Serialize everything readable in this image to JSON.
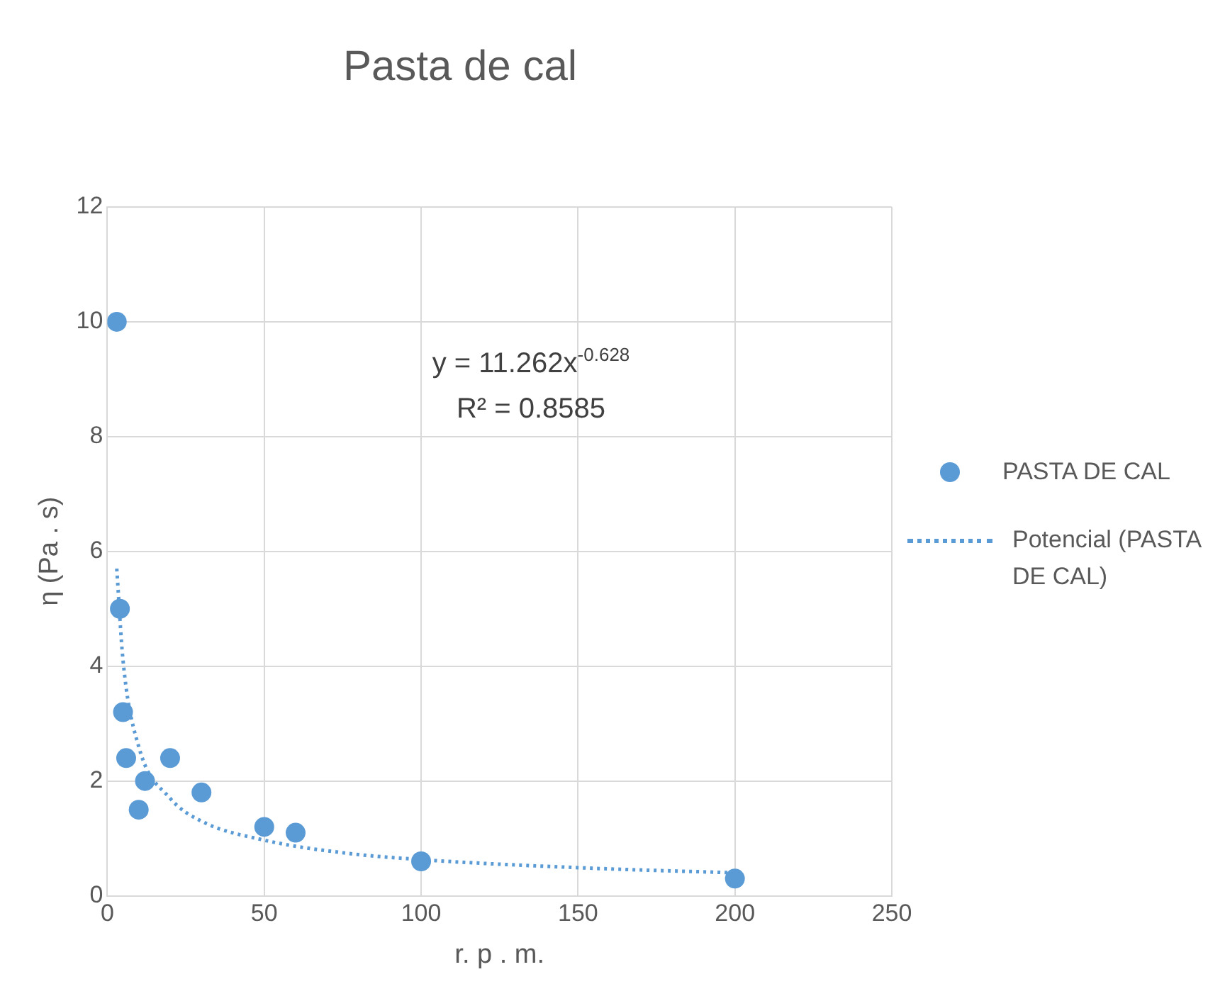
{
  "chart_data": {
    "type": "scatter",
    "title": "Pasta de cal",
    "xlabel": "r. p . m.",
    "ylabel": "η (Pa . s)",
    "xlim": [
      0,
      250
    ],
    "xticks": [
      0,
      50,
      100,
      150,
      200,
      250
    ],
    "ylim": [
      0,
      12
    ],
    "yticks": [
      0,
      2,
      4,
      6,
      8,
      10,
      12
    ],
    "grid": true,
    "legend": "right",
    "marker": "circle",
    "series": [
      {
        "name": "PASTA DE CAL",
        "color": "#5b9bd5",
        "x": [
          3,
          4,
          5,
          6,
          10,
          12,
          20,
          30,
          50,
          60,
          100,
          200
        ],
        "values": [
          10,
          5,
          3.2,
          2.4,
          1.5,
          2.0,
          2.4,
          1.8,
          1.2,
          1.1,
          0.6,
          0.3
        ]
      },
      {
        "name": "Potencial (PASTA DE CAL)",
        "type": "line",
        "color": "#5b9bd5",
        "line_style": "dotted",
        "marker": "none",
        "x": [
          3,
          5,
          10,
          20,
          30,
          50,
          75,
          100,
          150,
          200
        ],
        "values": [
          5.7,
          4.1,
          2.6,
          1.7,
          1.3,
          0.97,
          0.75,
          0.63,
          0.49,
          0.4
        ]
      }
    ],
    "annotations": [
      "y = 11.262x$^{-0.628}$",
      "R² = 0.8585"
    ]
  }
}
